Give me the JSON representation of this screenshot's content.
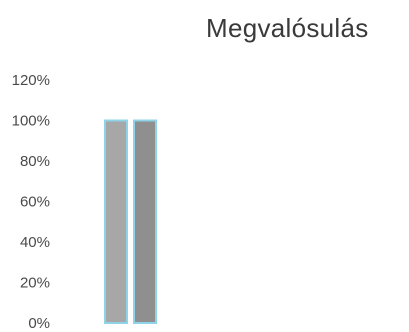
{
  "chart_data": {
    "type": "bar",
    "title": "Megvalósulás",
    "xlabel": "",
    "ylabel": "",
    "ylim": [
      0,
      120
    ],
    "yticks": [
      "0%",
      "20%",
      "40%",
      "60%",
      "80%",
      "100%",
      "120%"
    ],
    "grid": false,
    "categories": [
      ""
    ],
    "series": [
      {
        "values": [
          100
        ],
        "color": "#a7a7a7",
        "edge": "#8fd3e8"
      },
      {
        "values": [
          100
        ],
        "color": "#8f8f8f",
        "edge": "#8fd3e8"
      }
    ]
  }
}
